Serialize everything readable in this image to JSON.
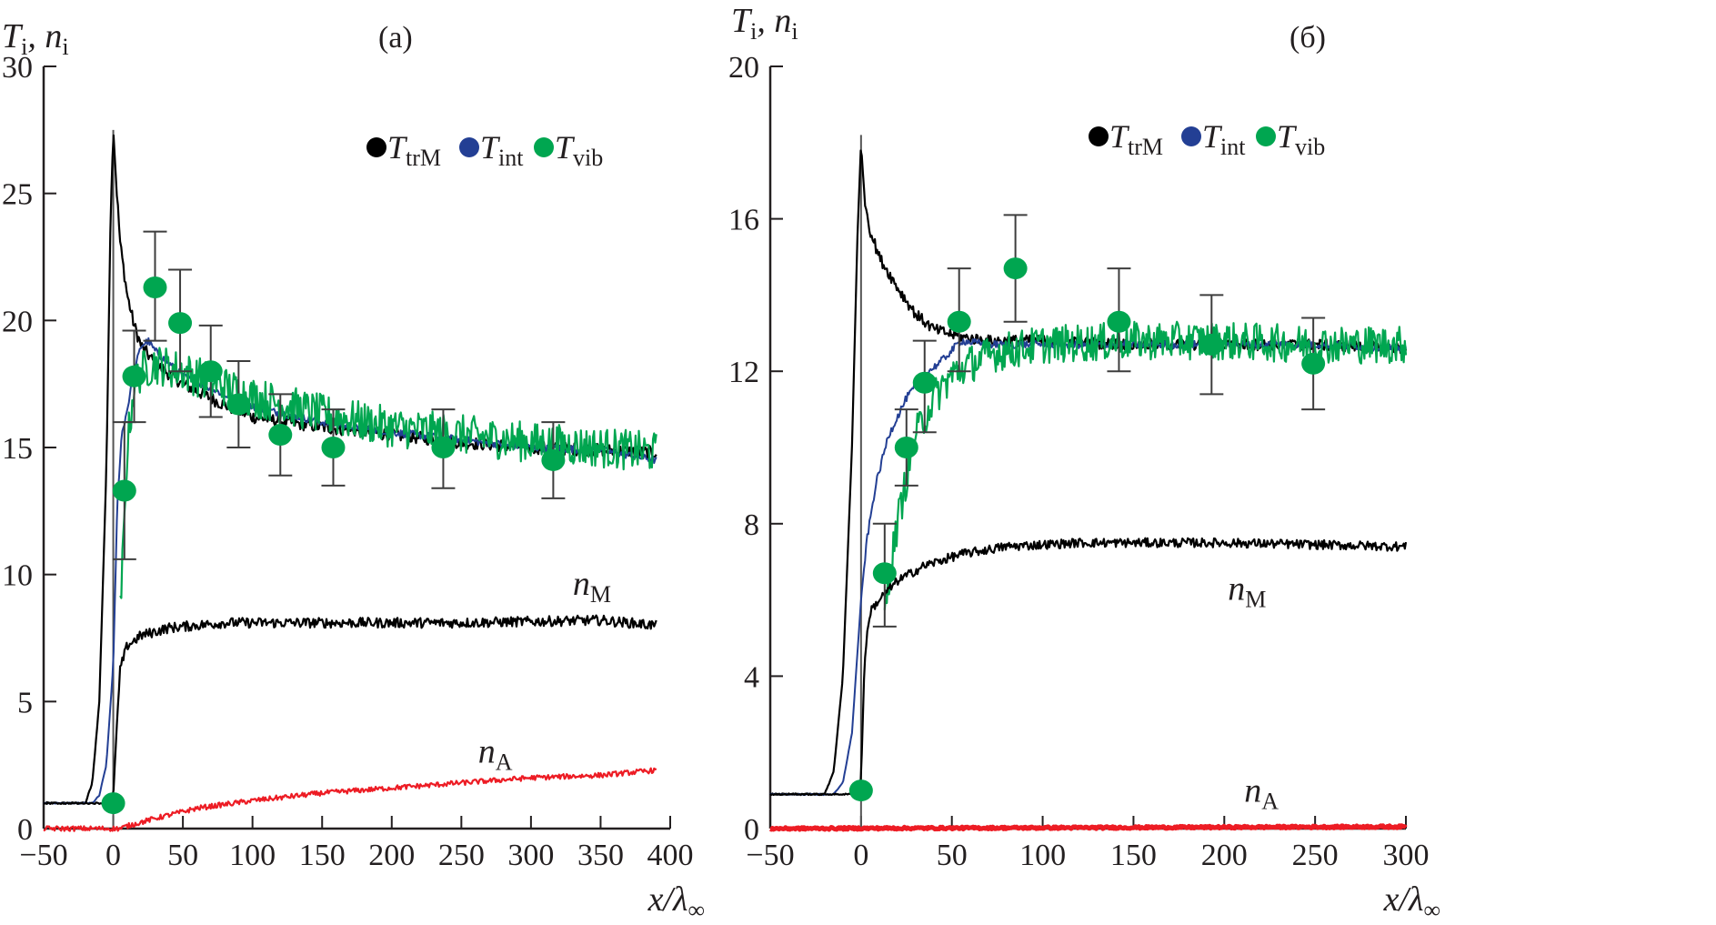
{
  "chart_data": [
    {
      "id": "a",
      "type": "line",
      "panel_label": "(a)",
      "ylabel": "T_i, n_i",
      "xlabel": "x/λ∞",
      "xlim": [
        -50,
        400
      ],
      "ylim": [
        0,
        30
      ],
      "xticks": [
        -50,
        0,
        50,
        100,
        150,
        200,
        250,
        300,
        350,
        400
      ],
      "yticks": [
        0,
        5,
        10,
        15,
        20,
        25,
        30
      ],
      "legend": {
        "position": "top-right",
        "entries": [
          {
            "symbol": "T",
            "sub": "trM",
            "color": "#000000"
          },
          {
            "symbol": "T",
            "sub": "int",
            "color": "#233f94"
          },
          {
            "symbol": "T",
            "sub": "vib",
            "color": "#00a650"
          }
        ]
      },
      "annotations": [
        {
          "text": "n",
          "sub": "M",
          "x": 330,
          "y": 9.2
        },
        {
          "text": "n",
          "sub": "A",
          "x": 262,
          "y": 2.6
        }
      ],
      "series": [
        {
          "name": "T_trM",
          "color": "#000000",
          "noise": 0.25,
          "x": [
            -50,
            -20,
            -15,
            -10,
            -5,
            -2,
            0,
            2,
            5,
            10,
            15,
            20,
            30,
            50,
            75,
            100,
            150,
            200,
            250,
            300,
            350,
            390
          ],
          "y": [
            1.0,
            1.0,
            1.8,
            5.0,
            14.0,
            24.0,
            27.5,
            25.5,
            23.0,
            21.0,
            19.8,
            19.0,
            18.3,
            17.5,
            16.8,
            16.2,
            15.8,
            15.5,
            15.2,
            15.0,
            14.9,
            14.8
          ]
        },
        {
          "name": "T_int",
          "color": "#233f94",
          "noise": 0.15,
          "x": [
            -50,
            -15,
            -10,
            -5,
            0,
            3,
            6,
            10,
            15,
            20,
            25,
            30,
            50,
            100,
            150,
            200,
            250,
            300,
            350,
            390
          ],
          "y": [
            1.0,
            1.0,
            1.3,
            2.5,
            6.5,
            13.0,
            15.5,
            16.5,
            18.0,
            19.0,
            19.2,
            18.8,
            17.8,
            16.6,
            16.0,
            15.6,
            15.3,
            15.0,
            14.9,
            14.5
          ]
        },
        {
          "name": "T_vib",
          "color": "#00a650",
          "noise": 0.8,
          "x": [
            5,
            8,
            10,
            15,
            20,
            30,
            50,
            100,
            150,
            200,
            250,
            300,
            350,
            390
          ],
          "y": [
            8.5,
            12.0,
            15.0,
            17.5,
            18.0,
            18.3,
            18.0,
            17.0,
            16.3,
            15.8,
            15.5,
            15.2,
            15.0,
            14.8
          ]
        },
        {
          "name": "n_M",
          "color": "#000000",
          "noise": 0.2,
          "x": [
            -50,
            -5,
            0,
            2,
            5,
            10,
            20,
            40,
            80,
            150,
            250,
            350,
            390
          ],
          "y": [
            1.0,
            1.0,
            1.3,
            3.5,
            6.3,
            7.2,
            7.6,
            7.9,
            8.1,
            8.1,
            8.1,
            8.2,
            8.0
          ]
        },
        {
          "name": "n_A",
          "color": "#ed1c24",
          "noise": 0.1,
          "x": [
            -50,
            5,
            10,
            30,
            60,
            100,
            150,
            200,
            250,
            300,
            350,
            390
          ],
          "y": [
            0.0,
            0.0,
            0.1,
            0.4,
            0.8,
            1.1,
            1.4,
            1.6,
            1.8,
            2.0,
            2.1,
            2.3
          ]
        }
      ],
      "points": {
        "name": "T_vib DSMC/experiment",
        "color": "#00a650",
        "x": [
          0,
          8,
          15,
          30,
          48,
          70,
          90,
          120,
          158,
          237,
          316
        ],
        "y": [
          1.0,
          13.3,
          17.8,
          21.3,
          19.9,
          18.0,
          16.7,
          15.5,
          15.0,
          15.0,
          14.5
        ],
        "err_low": [
          1.0,
          10.6,
          16.0,
          19.2,
          18.0,
          16.2,
          15.0,
          13.9,
          13.5,
          13.4,
          13.0
        ],
        "err_high": [
          1.0,
          16.0,
          19.6,
          23.5,
          22.0,
          19.8,
          18.4,
          17.1,
          16.5,
          16.5,
          16.0
        ]
      }
    },
    {
      "id": "b",
      "type": "line",
      "panel_label": "(б)",
      "ylabel": "T_i, n_i",
      "xlabel": "x/λ∞",
      "xlim": [
        -50,
        300
      ],
      "ylim": [
        0,
        20
      ],
      "xticks": [
        -50,
        0,
        50,
        100,
        150,
        200,
        250,
        300
      ],
      "yticks": [
        0,
        4,
        8,
        12,
        16,
        20
      ],
      "legend": {
        "position": "top-right",
        "entries": [
          {
            "symbol": "T",
            "sub": "trM",
            "color": "#000000"
          },
          {
            "symbol": "T",
            "sub": "int",
            "color": "#233f94"
          },
          {
            "symbol": "T",
            "sub": "vib",
            "color": "#00a650"
          }
        ]
      },
      "annotations": [
        {
          "text": "n",
          "sub": "M",
          "x": 202,
          "y": 6.0
        },
        {
          "text": "n",
          "sub": "A",
          "x": 211,
          "y": 0.7
        }
      ],
      "series": [
        {
          "name": "T_trM",
          "color": "#000000",
          "noise": 0.15,
          "x": [
            -50,
            -20,
            -15,
            -10,
            -5,
            -2,
            0,
            2,
            5,
            10,
            20,
            30,
            40,
            55,
            70,
            100,
            150,
            200,
            250,
            300
          ],
          "y": [
            0.9,
            0.9,
            1.5,
            4.0,
            10.0,
            15.5,
            18.0,
            16.5,
            15.7,
            15.0,
            14.2,
            13.5,
            13.1,
            12.9,
            12.8,
            12.8,
            12.7,
            12.7,
            12.7,
            12.6
          ]
        },
        {
          "name": "T_int",
          "color": "#233f94",
          "noise": 0.1,
          "x": [
            -50,
            -15,
            -10,
            -5,
            0,
            3,
            8,
            15,
            25,
            35,
            45,
            55,
            70,
            100,
            150,
            200,
            250,
            300
          ],
          "y": [
            0.9,
            0.9,
            1.2,
            2.5,
            6.0,
            7.5,
            9.0,
            10.3,
            11.3,
            11.9,
            12.3,
            12.8,
            12.7,
            12.7,
            12.7,
            12.7,
            12.7,
            12.6
          ]
        },
        {
          "name": "T_vib",
          "color": "#00a650",
          "noise": 0.5,
          "x": [
            13,
            15,
            20,
            25,
            30,
            40,
            50,
            60,
            75,
            100,
            150,
            200,
            250,
            300
          ],
          "y": [
            5.5,
            6.5,
            8.0,
            9.2,
            10.3,
            11.3,
            11.9,
            12.2,
            12.5,
            12.7,
            12.8,
            12.8,
            12.7,
            12.7
          ]
        },
        {
          "name": "n_M",
          "color": "#000000",
          "noise": 0.12,
          "x": [
            -50,
            -5,
            0,
            2,
            5,
            10,
            20,
            35,
            55,
            80,
            120,
            200,
            300
          ],
          "y": [
            0.9,
            0.9,
            1.3,
            4.5,
            5.7,
            6.0,
            6.5,
            6.9,
            7.2,
            7.4,
            7.5,
            7.5,
            7.4
          ]
        },
        {
          "name": "n_A",
          "color": "#ed1c24",
          "noise": 0.03,
          "x": [
            -50,
            300
          ],
          "y": [
            0.0,
            0.05
          ]
        }
      ],
      "points": {
        "name": "T_vib DSMC/experiment",
        "color": "#00a650",
        "x": [
          0,
          13,
          25,
          35,
          54,
          85,
          142,
          193,
          249
        ],
        "y": [
          1.0,
          6.7,
          10.0,
          11.7,
          13.3,
          14.7,
          13.3,
          12.7,
          12.2
        ],
        "err_low": [
          1.0,
          5.3,
          9.0,
          10.4,
          12.0,
          13.3,
          12.0,
          11.4,
          11.0
        ],
        "err_high": [
          1.0,
          8.0,
          11.0,
          12.8,
          14.7,
          16.1,
          14.7,
          14.0,
          13.4
        ]
      }
    }
  ]
}
